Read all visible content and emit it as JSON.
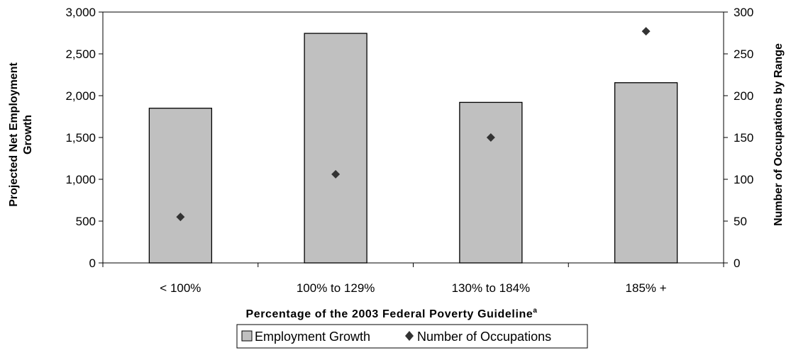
{
  "chart_data": {
    "type": "bar",
    "categories": [
      "< 100%",
      "100% to 129%",
      "130% to 184%",
      "185% +"
    ],
    "series": [
      {
        "name": "Employment Growth",
        "kind": "bar",
        "axis": "left",
        "values": [
          1850,
          2745,
          1920,
          2155
        ]
      },
      {
        "name": "Number of Occupations",
        "kind": "scatter",
        "axis": "right",
        "values": [
          55,
          106,
          150,
          277
        ]
      }
    ],
    "xlabel": "Percentage of the 2003 Federal Poverty Guideline",
    "xlabel_superscript": "a",
    "ylabel_left": "Projected Net Employment Growth",
    "ylabel_right": "Number of Occupations by Range",
    "ylim_left": [
      0,
      3000
    ],
    "ylim_right": [
      0,
      300
    ],
    "yticks_left": [
      "0",
      "500",
      "1,000",
      "1,500",
      "2,000",
      "2,500",
      "3,000"
    ],
    "yticks_right": [
      "0",
      "50",
      "100",
      "150",
      "200",
      "250",
      "300"
    ],
    "grid": false,
    "legend": "bottom-center",
    "colors": {
      "bar_fill": "#c0c0c0",
      "bar_stroke": "#000000",
      "marker": "#333333"
    }
  }
}
